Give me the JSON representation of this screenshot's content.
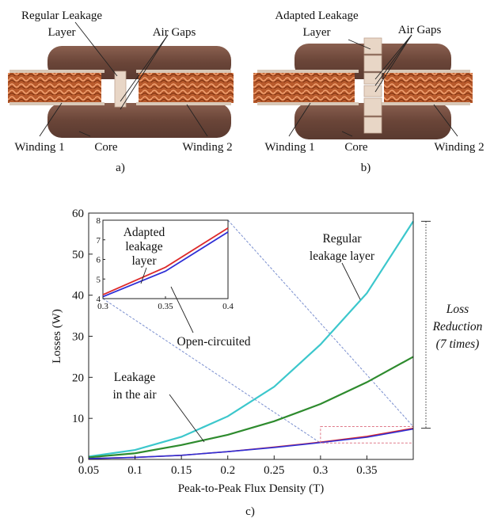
{
  "figure_a": {
    "label_regular_leakage": "Regular Leakage",
    "label_layer": "Layer",
    "label_air_gaps": "Air Gaps",
    "label_winding1": "Winding 1",
    "label_core": "Core",
    "label_winding2": "Winding 2",
    "caption": "a)"
  },
  "figure_b": {
    "label_adapted_leakage": "Adapted Leakage",
    "label_layer": "Layer",
    "label_air_gaps": "Air Gaps",
    "label_winding1": "Winding 1",
    "label_core": "Core",
    "label_winding2": "Winding 2",
    "caption": "b)"
  },
  "figure_c": {
    "caption": "c)",
    "annotations": {
      "regular_line1": "Regular",
      "regular_line2": "leakage layer",
      "air_line1": "Leakage",
      "air_line2": "in the air",
      "adapted_line1": "Adapted",
      "adapted_line2": "leakage",
      "adapted_line3": "layer",
      "open_circuited": "Open-circuited",
      "loss_line1": "Loss",
      "loss_line2": "Reduction",
      "loss_line3": "(7 times)"
    }
  },
  "colors": {
    "regular": "#3cc7cc",
    "air": "#2e8b2e",
    "adapted": "#dd2a2a",
    "open": "#2f2fd6",
    "zoom_box": "#e07a8a",
    "guide": "#7a8fcf",
    "copper": "#c8683a",
    "core": "#7a5446"
  },
  "chart_data": {
    "type": "line",
    "xlabel": "Peak-to-Peak Flux Density (T)",
    "ylabel": "Losses (W)",
    "xlim": [
      0.05,
      0.4
    ],
    "ylim": [
      0,
      60
    ],
    "xticks": [
      "0.05",
      "0.1",
      "0.15",
      "0.2",
      "0.25",
      "0.3",
      "0.35"
    ],
    "yticks": [
      "0",
      "10",
      "20",
      "30",
      "40",
      "50",
      "60"
    ],
    "x": [
      0.05,
      0.1,
      0.15,
      0.2,
      0.25,
      0.3,
      0.35,
      0.4
    ],
    "series": [
      {
        "key": "regular",
        "values": [
          0.7,
          2.3,
          5.5,
          10.5,
          17.7,
          28.0,
          40.5,
          58.0
        ]
      },
      {
        "key": "air",
        "values": [
          0.5,
          1.5,
          3.5,
          6.0,
          9.3,
          13.5,
          18.8,
          25.0
        ]
      },
      {
        "key": "adapted",
        "values": [
          0.2,
          0.5,
          1.0,
          1.9,
          3.0,
          4.2,
          5.6,
          7.6
        ]
      },
      {
        "key": "open",
        "values": [
          0.2,
          0.5,
          1.0,
          1.9,
          2.9,
          4.1,
          5.4,
          7.4
        ]
      }
    ],
    "inset": {
      "xlim": [
        0.3,
        0.4
      ],
      "ylim": [
        4,
        8
      ],
      "xticks": [
        "0.3",
        "0.35",
        "0.4"
      ],
      "yticks": [
        "4",
        "5",
        "6",
        "7",
        "8"
      ],
      "x": [
        0.3,
        0.35,
        0.4
      ],
      "series": [
        {
          "key": "adapted",
          "values": [
            4.2,
            5.6,
            7.6
          ]
        },
        {
          "key": "open",
          "values": [
            4.1,
            5.4,
            7.4
          ]
        }
      ]
    },
    "annotation_loss_reduction": "Loss Reduction (7 times)"
  }
}
